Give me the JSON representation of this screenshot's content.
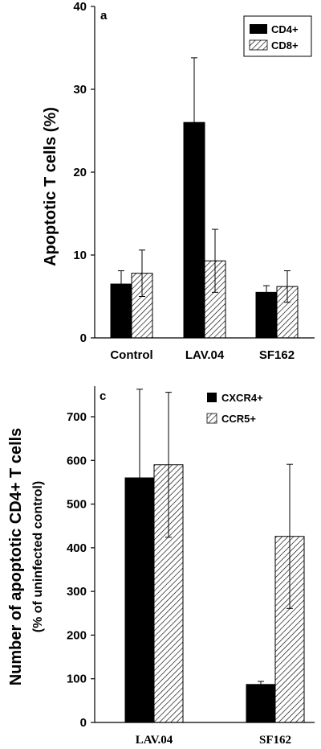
{
  "chart_data": [
    {
      "type": "bar",
      "panel_label": "a",
      "ylabel": "Apoptotic T cells (%)",
      "ylabel_sub": "",
      "categories": [
        "Control",
        "LAV.04",
        "SF162"
      ],
      "ylim": [
        0,
        40
      ],
      "yticks": [
        0,
        10,
        20,
        30,
        40
      ],
      "legend_position": "top-right",
      "grid": false,
      "series": [
        {
          "name": "CD4+",
          "pattern": "solid",
          "values": [
            6.5,
            26.0,
            5.5
          ],
          "errors": [
            1.6,
            7.8,
            0.8
          ]
        },
        {
          "name": "CD8+",
          "pattern": "hatched",
          "values": [
            7.8,
            9.3,
            6.2
          ],
          "errors": [
            2.8,
            3.8,
            1.9
          ]
        }
      ]
    },
    {
      "type": "bar",
      "panel_label": "c",
      "ylabel": "Number of apoptotic CD4+ T cells",
      "ylabel_sub": "(% of  uninfected control)",
      "categories": [
        "LAV.04",
        "SF162"
      ],
      "ylim": [
        0,
        770
      ],
      "yticks": [
        0,
        100,
        200,
        300,
        400,
        500,
        600,
        700
      ],
      "legend_position": "top-center",
      "grid": false,
      "series": [
        {
          "name": "CXCR4+",
          "pattern": "solid",
          "values": [
            560,
            87
          ],
          "errors": [
            203,
            7
          ]
        },
        {
          "name": "CCR5+",
          "pattern": "hatched",
          "values": [
            590,
            426
          ],
          "errors": [
            166,
            165
          ]
        }
      ]
    }
  ]
}
